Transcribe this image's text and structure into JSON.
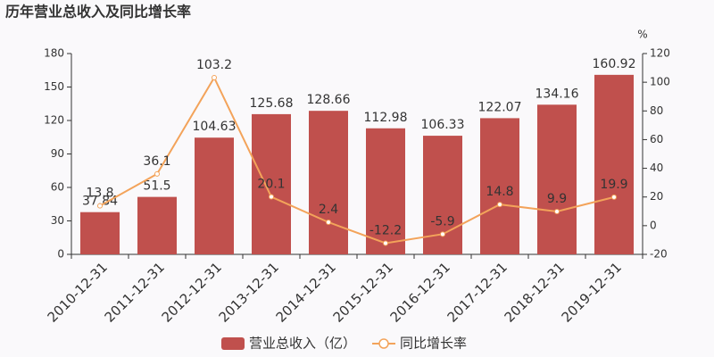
{
  "chart_data": {
    "type": "bar",
    "title": "历年营业总收入及同比增长率",
    "y2_unit": "%",
    "categories": [
      "2010-12-31",
      "2011-12-31",
      "2012-12-31",
      "2013-12-31",
      "2014-12-31",
      "2015-12-31",
      "2016-12-31",
      "2017-12-31",
      "2018-12-31",
      "2019-12-31"
    ],
    "series": [
      {
        "name": "营业总收入（亿）",
        "type": "bar",
        "color": "#c0504d",
        "values": [
          37.84,
          51.5,
          104.63,
          125.68,
          128.66,
          112.98,
          106.33,
          122.07,
          134.16,
          160.92
        ]
      },
      {
        "name": "同比增长率",
        "type": "line",
        "axis": "y2",
        "color": "#f3a35a",
        "values": [
          13.8,
          36.1,
          103.2,
          20.1,
          2.4,
          -12.2,
          -5.9,
          14.8,
          9.9,
          19.9
        ]
      }
    ],
    "ylim": [
      0,
      180
    ],
    "yticks": [
      0,
      30,
      60,
      90,
      120,
      150,
      180
    ],
    "y2lim": [
      -20,
      120
    ],
    "y2ticks": [
      -20,
      0,
      20,
      40,
      60,
      80,
      100,
      120
    ],
    "grid": false
  }
}
